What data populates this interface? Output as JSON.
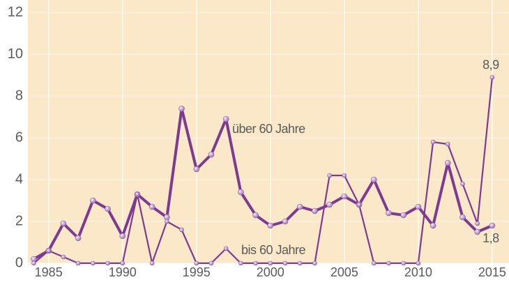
{
  "chart_data": {
    "type": "line",
    "x": [
      1984,
      1985,
      1986,
      1987,
      1988,
      1989,
      1990,
      1991,
      1992,
      1993,
      1994,
      1995,
      1996,
      1997,
      1998,
      1999,
      2000,
      2001,
      2002,
      2003,
      2004,
      2005,
      2006,
      2007,
      2008,
      2009,
      2010,
      2011,
      2012,
      2013,
      2014,
      2015
    ],
    "series": [
      {
        "name": "über 60 Jahre",
        "color": "#7d3a91",
        "values": [
          0.2,
          0.6,
          1.9,
          1.2,
          3.0,
          2.6,
          1.3,
          3.3,
          2.7,
          2.2,
          7.4,
          4.5,
          5.2,
          6.9,
          3.4,
          2.3,
          1.8,
          2.0,
          2.7,
          2.5,
          2.8,
          3.2,
          2.8,
          4.0,
          2.4,
          2.3,
          2.7,
          1.8,
          4.8,
          2.2,
          1.5,
          1.8
        ],
        "value_labels": [
          null,
          null,
          null,
          null,
          null,
          null,
          null,
          null,
          null,
          null,
          null,
          null,
          null,
          null,
          null,
          null,
          null,
          null,
          null,
          null,
          null,
          null,
          null,
          null,
          null,
          null,
          null,
          null,
          null,
          null,
          null,
          "1,8"
        ]
      },
      {
        "name": "bis 60 Jahre",
        "color": "#7d3a91",
        "values": [
          0,
          0.6,
          0.3,
          0,
          0,
          0,
          0,
          3.3,
          0,
          2.0,
          1.6,
          0,
          0,
          0.7,
          0,
          0,
          0,
          0,
          0,
          0,
          4.2,
          4.2,
          2.8,
          0,
          0,
          0,
          0,
          5.8,
          5.7,
          3.8,
          1.9,
          8.9
        ],
        "value_labels": [
          null,
          null,
          null,
          null,
          null,
          null,
          null,
          null,
          null,
          null,
          null,
          null,
          null,
          null,
          null,
          null,
          null,
          null,
          null,
          null,
          null,
          null,
          null,
          null,
          null,
          null,
          null,
          null,
          null,
          null,
          null,
          "8,9"
        ]
      }
    ],
    "xlim": [
      1983.6,
      2015.9
    ],
    "xticks": [
      1985,
      1990,
      1995,
      2000,
      2005,
      2010,
      2015
    ],
    "ylim": [
      0,
      12
    ],
    "yticks": [
      0,
      2,
      4,
      6,
      8,
      10,
      12
    ],
    "grid": true
  }
}
